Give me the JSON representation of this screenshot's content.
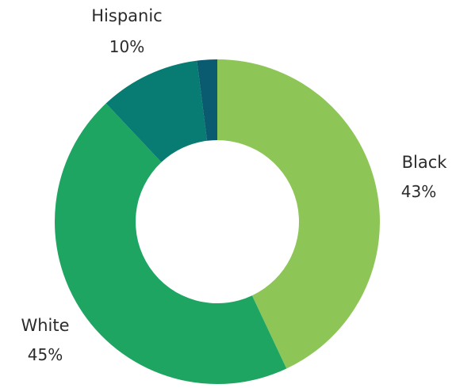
{
  "chart_data": {
    "type": "pie",
    "variant": "donut",
    "title": "",
    "slices": [
      {
        "label": "Black",
        "value_label": "43%",
        "value": 43,
        "color": "#8dc657"
      },
      {
        "label": "White",
        "value_label": "45%",
        "value": 45,
        "color": "#1fa562"
      },
      {
        "label": "Hispanic",
        "value_label": "10%",
        "value": 10,
        "color": "#087c72"
      },
      {
        "label": "",
        "value_label": "",
        "value": 2,
        "color": "#0a5a70"
      }
    ],
    "start_angle": "top",
    "direction": "clockwise",
    "legend": "none (labels placed outside slices)"
  }
}
